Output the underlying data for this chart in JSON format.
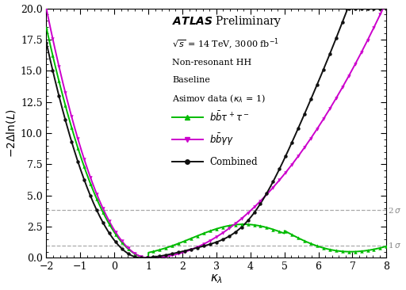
{
  "title_atlas": "ATLAS",
  "title_prelim": " Preliminary",
  "sub1": "$\\sqrt{s}$ = 14 TeV, 3000 fb$^{-1}$",
  "sub2": "Non-resonant HH",
  "sub3": "Baseline",
  "sub4": "Asimov data ($\\kappa_\\lambda$ = 1)",
  "leg1": "$b\\bar{b}\\tau^+\\tau^-$",
  "leg2": "$b\\bar{b}\\gamma\\gamma$",
  "leg3": "Combined",
  "xlabel": "$\\kappa_\\lambda$",
  "ylabel": "$-2\\Delta\\ln(L)$",
  "xlim": [
    -2,
    8
  ],
  "ylim": [
    0,
    20
  ],
  "xticks": [
    -2,
    -1,
    0,
    1,
    2,
    3,
    4,
    5,
    6,
    7,
    8
  ],
  "yticks": [
    0,
    2.5,
    5.0,
    7.5,
    10.0,
    12.5,
    15.0,
    17.5,
    20.0
  ],
  "hline_1sigma": 1.0,
  "hline_2sigma": 3.84,
  "color_bbtautau": "#00bb00",
  "color_bbgg": "#cc00cc",
  "color_combined": "#111111",
  "color_sigma": "#aaaaaa",
  "color_sigma_label": "#888888",
  "bg_color": "#ffffff",
  "lw": 1.4,
  "ms": 3.2
}
